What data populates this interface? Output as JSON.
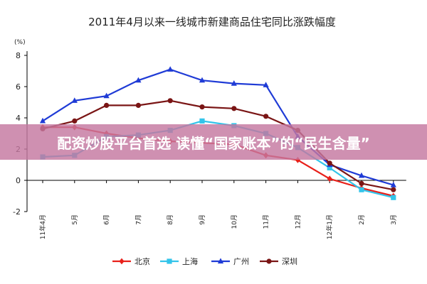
{
  "chart_data": {
    "type": "line",
    "title": "2011年4月以来一线城市新建商品住宅同比涨跌幅度",
    "unit_label": "(%)",
    "categories": [
      "11年4月",
      "5月",
      "6月",
      "7月",
      "8月",
      "9月",
      "10月",
      "11月",
      "12月",
      "12年1月",
      "2月",
      "3月"
    ],
    "ylim": [
      -2,
      8
    ],
    "yticks": [
      -2,
      0,
      2,
      4,
      6,
      8
    ],
    "grid": false,
    "legend_position": "bottom",
    "series": [
      {
        "name": "北京",
        "color": "#e8201a",
        "marker": "diamond",
        "values": [
          3.4,
          3.4,
          3.0,
          2.7,
          2.5,
          2.4,
          2.3,
          1.6,
          1.3,
          0.1,
          -0.5,
          -1.0
        ]
      },
      {
        "name": "上海",
        "color": "#33c4ea",
        "marker": "square",
        "values": [
          1.5,
          1.6,
          2.8,
          2.9,
          3.2,
          3.8,
          3.5,
          3.0,
          2.1,
          0.8,
          -0.6,
          -1.1
        ]
      },
      {
        "name": "广州",
        "color": "#1f3bd6",
        "marker": "triangle",
        "values": [
          3.8,
          5.1,
          5.4,
          6.4,
          7.1,
          6.4,
          6.2,
          6.1,
          2.8,
          1.0,
          0.3,
          -0.3
        ]
      },
      {
        "name": "深圳",
        "color": "#7a1515",
        "marker": "circle",
        "values": [
          3.3,
          3.8,
          4.8,
          4.8,
          5.1,
          4.7,
          4.6,
          4.1,
          3.2,
          1.1,
          -0.2,
          -0.6
        ]
      }
    ]
  },
  "overlay": {
    "text": "配资炒股平台首选 读懂“国家账本”的“民生含量”"
  }
}
